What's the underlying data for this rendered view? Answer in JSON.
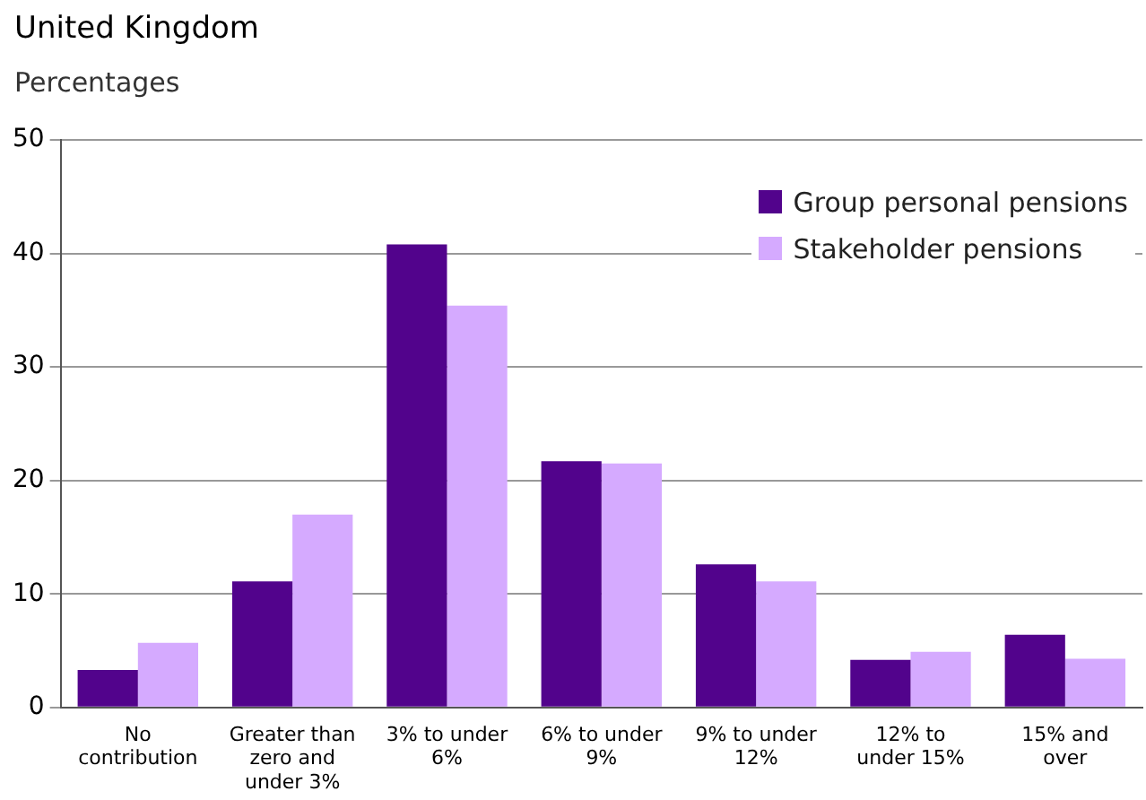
{
  "chart_data": {
    "type": "bar",
    "title": "United Kingdom",
    "subtitle": "Percentages",
    "categories": [
      "No contribution",
      "Greater than zero and under 3%",
      "3% to under 6%",
      "6% to under 9%",
      "9% to under 12%",
      "12% to under 15%",
      "15% and over"
    ],
    "series": [
      {
        "name": "Group personal pensions",
        "color": "#52038c",
        "values": [
          3.3,
          11.1,
          40.8,
          21.7,
          12.6,
          4.2,
          6.4
        ]
      },
      {
        "name": "Stakeholder pensions",
        "color": "#d5aaff",
        "values": [
          5.7,
          17.0,
          35.4,
          21.5,
          11.1,
          4.9,
          4.3
        ]
      }
    ],
    "ylim": [
      0,
      50
    ],
    "yticks": [
      0,
      10,
      20,
      30,
      40,
      50
    ],
    "grid": "y",
    "legend": "top right"
  }
}
